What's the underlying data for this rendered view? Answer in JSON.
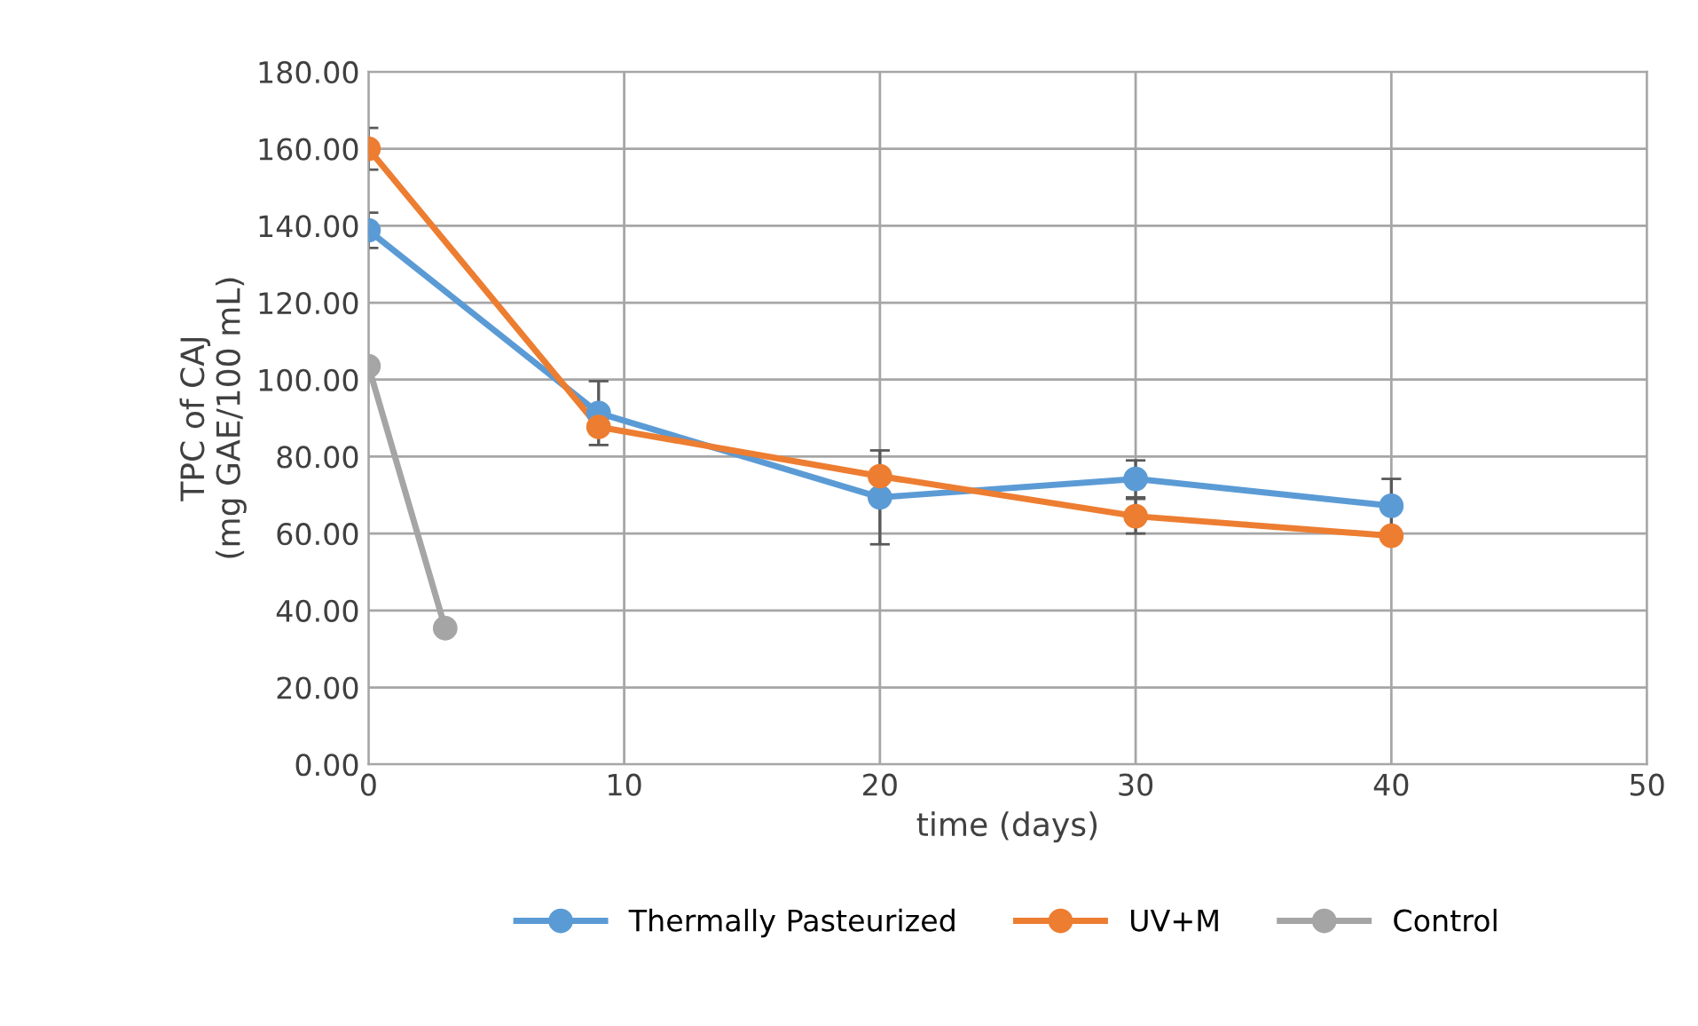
{
  "chart_data": {
    "type": "line",
    "xlabel": "time (days)",
    "ylabel": "TPC of CAJ\n(mg GAE/100 mL)",
    "xlim": [
      0,
      50
    ],
    "xticks": [
      0,
      10,
      20,
      30,
      40,
      50
    ],
    "ylim": [
      0,
      180
    ],
    "yticks": [
      {
        "value": 0,
        "label": "0.00"
      },
      {
        "value": 20,
        "label": "20.00"
      },
      {
        "value": 40,
        "label": "40.00"
      },
      {
        "value": 60,
        "label": "60.00"
      },
      {
        "value": 80,
        "label": "80.00"
      },
      {
        "value": 100,
        "label": "100.00"
      },
      {
        "value": 120,
        "label": "120.00"
      },
      {
        "value": 140,
        "label": "140.00"
      },
      {
        "value": 160,
        "label": "160.00"
      },
      {
        "value": 180,
        "label": "180.00"
      }
    ],
    "grid": true,
    "legend": "bottom",
    "marker": "circle",
    "line_style": "solid",
    "series": [
      {
        "name": "Thermally Pasteurized",
        "color": "#5b9bd5",
        "x": [
          0,
          9,
          20,
          30,
          40
        ],
        "values": [
          138.8,
          91.3,
          69.4,
          74.2,
          67.2
        ],
        "errors": [
          4.6,
          8.3,
          12.2,
          4.8,
          7
        ]
      },
      {
        "name": "UV+M",
        "color": "#ed7d31",
        "x": [
          0,
          9,
          20,
          30,
          40
        ],
        "values": [
          160,
          87.7,
          74.9,
          64.5,
          59.4
        ],
        "errors": [
          5.4,
          null,
          null,
          4.5,
          null
        ]
      },
      {
        "name": "Control",
        "color": "#a5a5a5",
        "x": [
          0,
          3
        ],
        "values": [
          103.5,
          35.4
        ]
      }
    ]
  }
}
